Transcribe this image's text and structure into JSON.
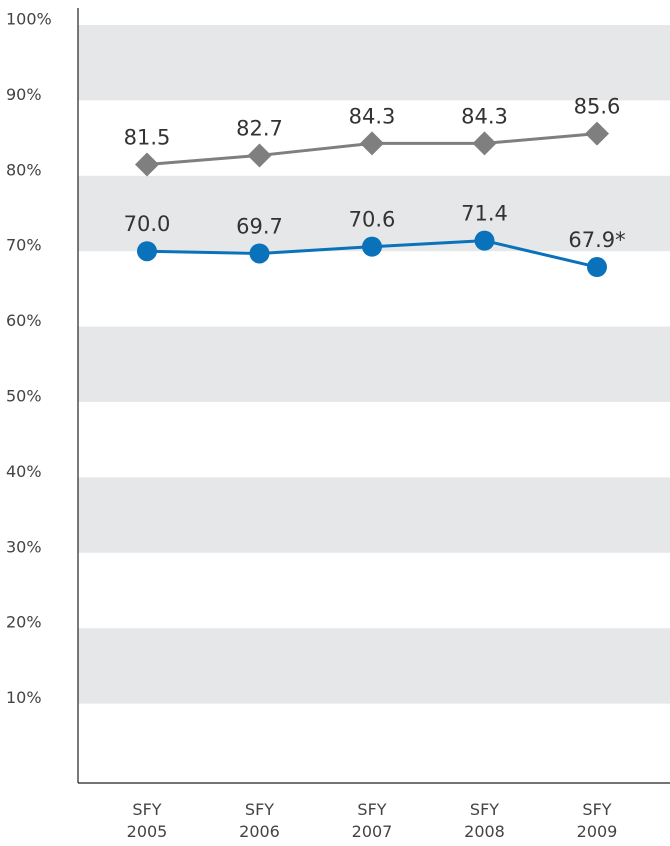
{
  "chart_data": {
    "type": "line",
    "categories": [
      "SFY 2005",
      "SFY 2006",
      "SFY 2007",
      "SFY 2008",
      "SFY 2009"
    ],
    "series": [
      {
        "color": "#7f7f7f",
        "marker": "diamond",
        "values": [
          81.5,
          82.7,
          84.3,
          84.3,
          85.6
        ],
        "value_labels": [
          "81.5",
          "82.7",
          "84.3",
          "84.3",
          "85.6"
        ]
      },
      {
        "color": "#0a72ba",
        "marker": "circle",
        "values": [
          70.0,
          69.7,
          70.6,
          71.4,
          67.9
        ],
        "value_labels": [
          "70.0",
          "69.7",
          "70.6",
          "71.4",
          "67.9*"
        ]
      }
    ],
    "ylim": [
      0,
      100
    ],
    "yticks": [
      {
        "value": 10,
        "label": "10%"
      },
      {
        "value": 20,
        "label": "20%"
      },
      {
        "value": 30,
        "label": "30%"
      },
      {
        "value": 40,
        "label": "40%"
      },
      {
        "value": 50,
        "label": "50%"
      },
      {
        "value": 60,
        "label": "60%"
      },
      {
        "value": 70,
        "label": "70%"
      },
      {
        "value": 80,
        "label": "80%"
      },
      {
        "value": 90,
        "label": "90%"
      },
      {
        "value": 100,
        "label": "100%"
      }
    ],
    "band_fill": "#e6e7e8"
  }
}
